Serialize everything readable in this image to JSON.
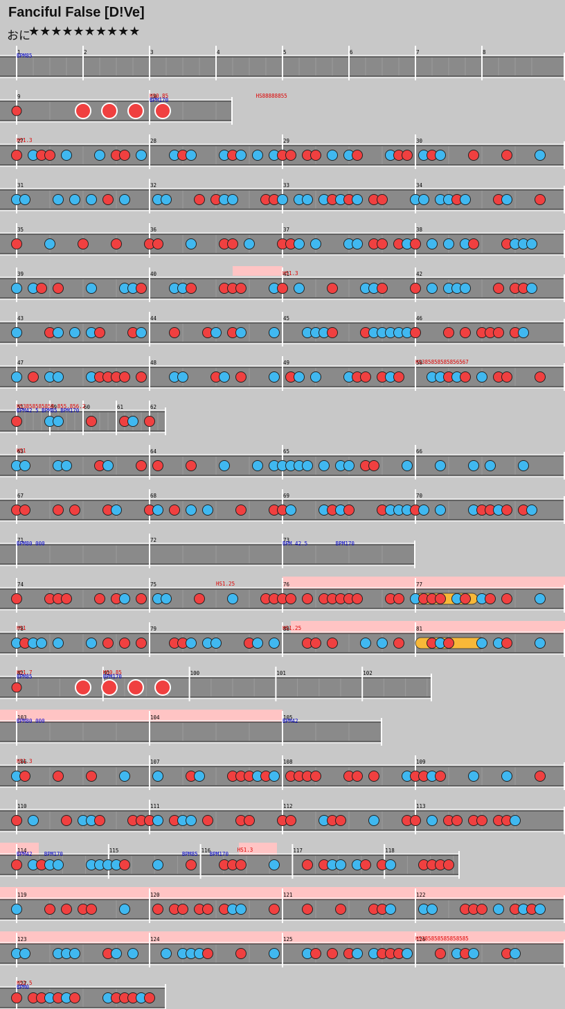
{
  "song": {
    "title": "Fanciful False [D!Ve]",
    "difficulty": "おに",
    "stars": "★★★★★★★★★★"
  },
  "colors": {
    "background": "#c8c8c8",
    "lane": "#8a8a8a",
    "don": "#f04040",
    "ka": "#40b8f0",
    "drumroll": "#f8b838",
    "scroll_band": "#ffc4c4",
    "hs_text": "#dd0000",
    "bpm_text": "#0000cc"
  },
  "chart_data": {
    "type": "notechart",
    "rows": [
      {
        "measures": [
          1,
          2,
          3,
          4,
          5,
          6,
          7,
          8
        ],
        "labels": [
          {
            "text": "BPM85",
            "kind": "bpm",
            "m": 0
          }
        ]
      },
      {
        "measures": [
          9,
          10
        ],
        "labels": [
          {
            "text": "HS0.85",
            "kind": "hs",
            "m": 1
          },
          {
            "text": "BPM170",
            "kind": "bpm",
            "m": 1
          },
          {
            "text": "HS88888855",
            "kind": "hs",
            "m": 1.8
          }
        ]
      },
      {
        "measures": [
          27,
          28,
          29,
          30
        ],
        "labels": [
          {
            "text": "HS1.3",
            "kind": "hs",
            "m": 0
          }
        ]
      },
      {
        "measures": [
          31,
          32,
          33,
          34
        ],
        "labels": []
      },
      {
        "measures": [
          35,
          36,
          37,
          38
        ],
        "labels": []
      },
      {
        "measures": [
          39,
          40,
          41,
          42
        ],
        "labels": [
          {
            "text": "HS1.3",
            "kind": "hs",
            "m": 2
          }
        ]
      },
      {
        "measures": [
          43,
          44,
          45,
          46
        ],
        "labels": []
      },
      {
        "measures": [
          47,
          48,
          49,
          50
        ],
        "labels": [
          {
            "text": "HS385858585856567",
            "kind": "hs",
            "m": 3
          }
        ]
      },
      {
        "measures": [
          51,
          59,
          60,
          61,
          62
        ],
        "labels": [
          {
            "text": "HS3858585858.855.856.2",
            "kind": "hs",
            "m": 0
          },
          {
            "text": "BPM42.5 BPM85 BPM170",
            "kind": "bpm",
            "m": 0
          }
        ]
      },
      {
        "measures": [
          63,
          64,
          65,
          66
        ],
        "labels": [
          {
            "text": "HS1",
            "kind": "hs",
            "m": 0
          }
        ]
      },
      {
        "measures": [
          67,
          68,
          69,
          70
        ],
        "labels": []
      },
      {
        "measures": [
          71,
          72,
          73
        ],
        "labels": [
          {
            "text": "BPM80 000",
            "kind": "bpm",
            "m": 0
          },
          {
            "text": "BPM 42.5",
            "kind": "bpm",
            "m": 2
          },
          {
            "text": "BPM170",
            "kind": "bpm",
            "m": 2.4
          }
        ]
      },
      {
        "measures": [
          74,
          75,
          76,
          77
        ],
        "labels": [
          {
            "text": "HS1.25",
            "kind": "hs",
            "m": 1.5
          }
        ]
      },
      {
        "measures": [
          78,
          79,
          80,
          81
        ],
        "labels": [
          {
            "text": "HS1",
            "kind": "hs",
            "m": 0
          },
          {
            "text": "HS1.25",
            "kind": "hs",
            "m": 2
          }
        ]
      },
      {
        "measures": [
          82,
          91,
          100,
          101,
          102
        ],
        "labels": [
          {
            "text": "HS1.7",
            "kind": "hs",
            "m": 0
          },
          {
            "text": "BPM85",
            "kind": "bpm",
            "m": 0
          },
          {
            "text": "HS0.85",
            "kind": "hs",
            "m": 1
          },
          {
            "text": "BPM170",
            "kind": "bpm",
            "m": 1
          }
        ]
      },
      {
        "measures": [
          103,
          104,
          105
        ],
        "labels": [
          {
            "text": "BPM80 000",
            "kind": "bpm",
            "m": 0
          },
          {
            "text": "BPM42",
            "kind": "bpm",
            "m": 2
          }
        ]
      },
      {
        "measures": [
          106,
          107,
          108,
          109
        ],
        "labels": [
          {
            "text": "HS1.3",
            "kind": "hs",
            "m": 0
          }
        ]
      },
      {
        "measures": [
          110,
          111,
          112,
          113
        ],
        "labels": []
      },
      {
        "measures": [
          114,
          115,
          116,
          117,
          118
        ],
        "labels": [
          {
            "text": "BPM42",
            "kind": "bpm",
            "m": 0
          },
          {
            "text": "BPM170",
            "kind": "bpm",
            "m": 0.3
          },
          {
            "text": "BPM85",
            "kind": "bpm",
            "m": 1.8
          },
          {
            "text": "BPM170",
            "kind": "bpm",
            "m": 2.1
          },
          {
            "text": "HS1.3",
            "kind": "hs",
            "m": 2.4
          }
        ]
      },
      {
        "measures": [
          119,
          120,
          121,
          122
        ],
        "labels": []
      },
      {
        "measures": [
          123,
          124,
          125,
          126
        ],
        "labels": [
          {
            "text": "HS385858585858585",
            "kind": "hs",
            "m": 3
          }
        ]
      },
      {
        "measures": [
          127
        ],
        "labels": [
          {
            "text": "HS2.5",
            "kind": "hs",
            "m": 0
          },
          {
            "text": "BPM0",
            "kind": "bpm",
            "m": 0
          }
        ]
      }
    ]
  }
}
